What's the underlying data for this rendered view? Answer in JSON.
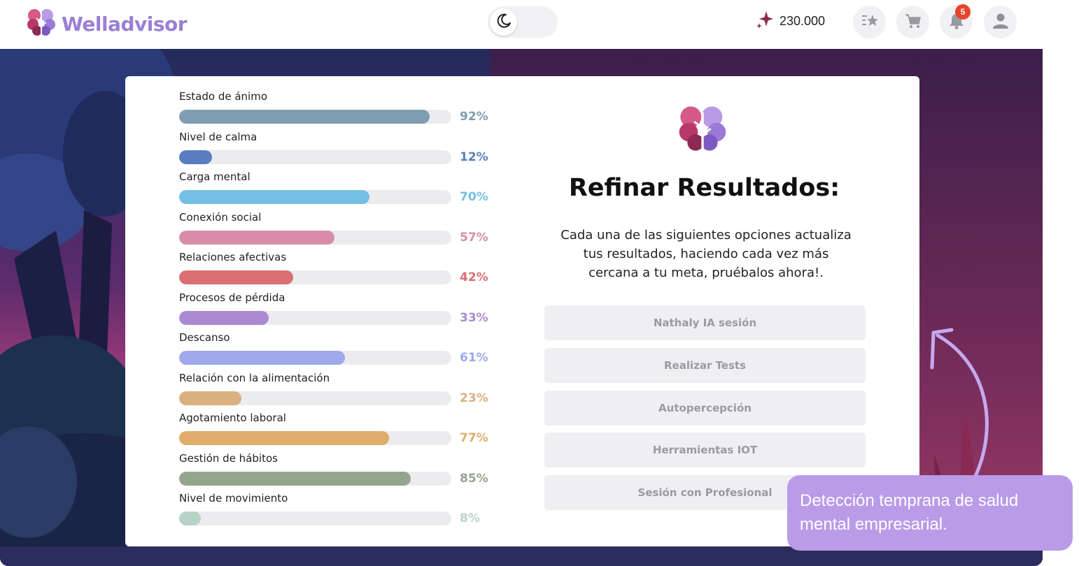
{
  "header": {
    "brand_name": "Welladvisor",
    "points_value": "230.000",
    "notifications_count": "5",
    "icons": [
      "brain-logo-icon",
      "moon-icon",
      "sparkle-icon",
      "star-list-icon",
      "cart-icon",
      "bell-icon",
      "user-icon"
    ]
  },
  "colors": {
    "brand_purple": "#9b7fd4",
    "badge_red": "#e8452d",
    "callout_bg": "#b99be8"
  },
  "metrics": [
    {
      "label": "Estado de ánimo",
      "value": 92,
      "display": "92%",
      "color": "#7f9db0"
    },
    {
      "label": "Nivel de calma",
      "value": 12,
      "display": "12%",
      "color": "#5b7dbf"
    },
    {
      "label": "Carga mental",
      "value": 70,
      "display": "70%",
      "color": "#74c0e4"
    },
    {
      "label": "Conexión social",
      "value": 57,
      "display": "57%",
      "color": "#d98ca8"
    },
    {
      "label": "Relaciones afectivas",
      "value": 42,
      "display": "42%",
      "color": "#db6f72"
    },
    {
      "label": "Procesos de pérdida",
      "value": 33,
      "display": "33%",
      "color": "#a98ad1"
    },
    {
      "label": "Descanso",
      "value": 61,
      "display": "61%",
      "color": "#9ea8ea"
    },
    {
      "label": "Relación con la alimentación",
      "value": 23,
      "display": "23%",
      "color": "#dbb080"
    },
    {
      "label": "Agotamiento laboral",
      "value": 77,
      "display": "77%",
      "color": "#e0ac6c"
    },
    {
      "label": "Gestión de hábitos",
      "value": 85,
      "display": "85%",
      "color": "#94a58e"
    },
    {
      "label": "Nivel de movimiento",
      "value": 8,
      "display": "8%",
      "color": "#b7d3c7"
    }
  ],
  "refine": {
    "title": "Refinar Resultados:",
    "description": "Cada una de las siguientes opciones actualiza tus resultados, haciendo cada vez más cercana a tu meta, pruébalos ahora!.",
    "options": [
      "Nathaly IA sesión",
      "Realizar Tests",
      "Autopercepción",
      "Herramientas IOT",
      "Sesión con Profesional"
    ]
  },
  "callout": {
    "text": "Detección temprana de salud mental empresarial."
  }
}
